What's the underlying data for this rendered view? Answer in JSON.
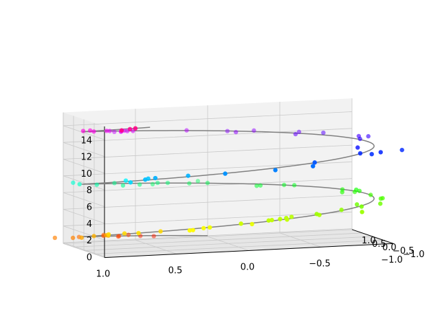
{
  "chart_data": {
    "type": "scatter",
    "projection": "3d",
    "title": "",
    "xlabel": "",
    "ylabel": "",
    "zlabel": "",
    "xlim": [
      -1.0,
      1.0
    ],
    "ylim": [
      -1.0,
      1.0
    ],
    "zlim": [
      0,
      15
    ],
    "x_ticks": [
      "1.0",
      "0.5",
      "0.0",
      "−0.5",
      "−1.0"
    ],
    "y_ticks": [
      "1.0",
      "0.5",
      "0.0",
      "−0.5",
      "−1.0"
    ],
    "z_ticks": [
      "0",
      "2",
      "4",
      "6",
      "8",
      "10",
      "12",
      "14"
    ],
    "grid": true,
    "legend": false,
    "pane_color": "#f2f2f2",
    "curve": {
      "description": "helix",
      "param_range": [
        0,
        15
      ],
      "x": "sin(z)",
      "y": "cos(z)",
      "color": "#808080"
    },
    "points": {
      "count": 100,
      "z_range": [
        0,
        15
      ],
      "x": "sin(z) + noise(0.1)",
      "y": "cos(z) + noise(0.1)",
      "colormap": "hsv",
      "color_by": "z"
    }
  }
}
